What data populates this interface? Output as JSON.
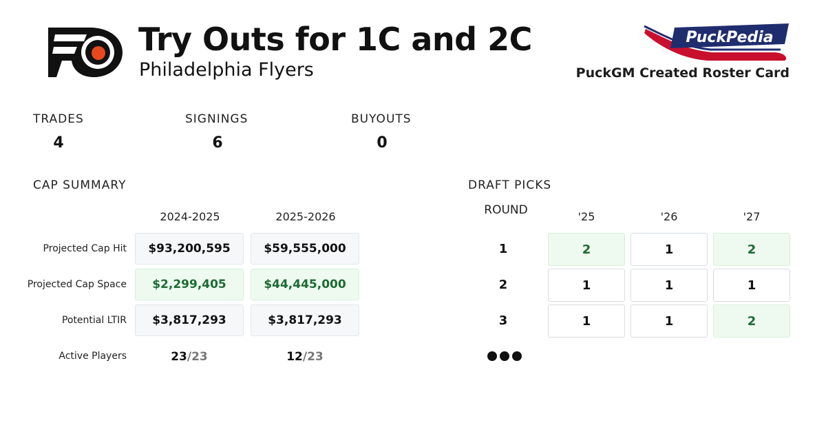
{
  "header": {
    "title": "Try Outs for 1C and 2C",
    "team": "Philadelphia Flyers",
    "brand_text": "PuckPedia",
    "brand_caption": "PuckGM Created Roster Card"
  },
  "stats": [
    {
      "label": "TRADES",
      "value": "4"
    },
    {
      "label": "SIGNINGS",
      "value": "6"
    },
    {
      "label": "BUYOUTS",
      "value": "0"
    }
  ],
  "cap_summary": {
    "title": "CAP SUMMARY",
    "seasons": [
      "2024-2025",
      "2025-2026"
    ],
    "rows": [
      {
        "label": "Projected Cap Hit",
        "values": [
          "$93,200,595",
          "$59,555,000"
        ]
      },
      {
        "label": "Projected Cap Space",
        "values": [
          "$2,299,405",
          "$44,445,000"
        ]
      },
      {
        "label": "Potential LTIR",
        "values": [
          "$3,817,293",
          "$3,817,293"
        ]
      }
    ],
    "active_players": {
      "label": "Active Players",
      "values": [
        {
          "count": "23",
          "max": "/23"
        },
        {
          "count": "12",
          "max": "/23"
        }
      ]
    }
  },
  "draft_picks": {
    "title": "DRAFT PICKS",
    "round_label": "ROUND",
    "years": [
      "'25",
      "'26",
      "'27"
    ],
    "rounds": [
      {
        "round": "1",
        "picks": [
          "2",
          "1",
          "2"
        ]
      },
      {
        "round": "2",
        "picks": [
          "1",
          "1",
          "1"
        ]
      },
      {
        "round": "3",
        "picks": [
          "1",
          "1",
          "2"
        ]
      }
    ]
  },
  "colors": {
    "flyers_orange": "#e8481e",
    "surplus_green": "#1e6a34",
    "brand_navy": "#1f2d6e",
    "brand_red": "#c8102e"
  }
}
